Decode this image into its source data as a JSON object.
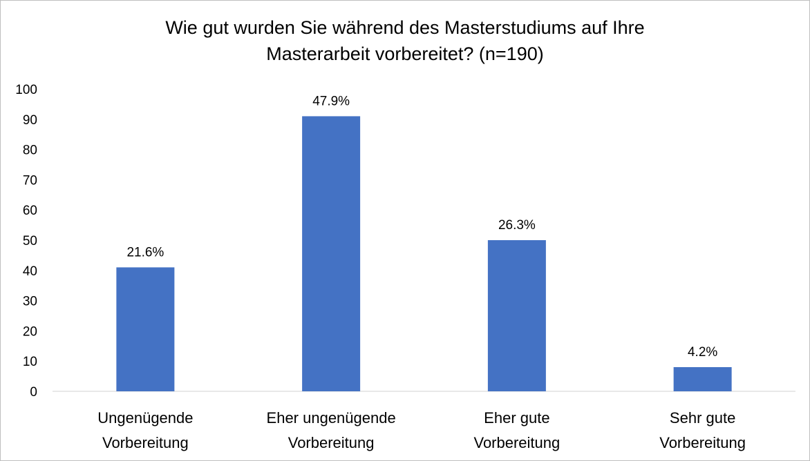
{
  "chart_data": {
    "type": "bar",
    "title_lines": [
      "Wie gut wurden Sie während des Masterstudiums auf Ihre",
      "Masterarbeit vorbereitet? (n=190)"
    ],
    "categories": [
      [
        "Ungenügende",
        "Vorbereitung"
      ],
      [
        "Eher ungenügende",
        "Vorbereitung"
      ],
      [
        "Eher gute",
        "Vorbereitung"
      ],
      [
        "Sehr gute",
        "Vorbereitung"
      ]
    ],
    "values": [
      41,
      91,
      50,
      8
    ],
    "data_labels": [
      "21.6%",
      "47.9%",
      "26.3%",
      "4.2%"
    ],
    "yticks": [
      "0",
      "10",
      "20",
      "30",
      "40",
      "50",
      "60",
      "70",
      "80",
      "90",
      "100"
    ],
    "ylim": [
      0,
      100
    ],
    "grid": false,
    "bar_color": "#4472C4"
  }
}
